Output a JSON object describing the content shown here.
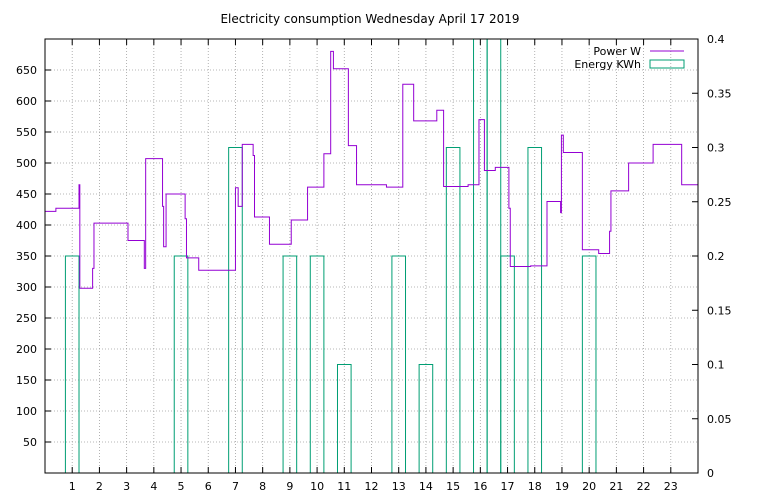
{
  "chart_data": {
    "type": "line",
    "title": "Electricity consumption Wednesday April 17 2019",
    "xlabel": "",
    "ylabel": "",
    "y2label": "",
    "xlim": [
      0,
      24
    ],
    "ylim": [
      0,
      700
    ],
    "y2lim": [
      0,
      0.4
    ],
    "grid": true,
    "legend_position": "top-right",
    "x_ticks": [
      1,
      2,
      3,
      4,
      5,
      6,
      7,
      8,
      9,
      10,
      11,
      12,
      13,
      14,
      15,
      16,
      17,
      18,
      19,
      20,
      21,
      22,
      23
    ],
    "x_tick_labels": [
      "1",
      "2",
      "3",
      "4",
      "5",
      "6",
      "7",
      "8",
      "9",
      "10",
      "11",
      "12",
      "13",
      "14",
      "15",
      "16",
      "17",
      "18",
      "19",
      "20",
      "21",
      "22",
      "23"
    ],
    "y_ticks": [
      50,
      100,
      150,
      200,
      250,
      300,
      350,
      400,
      450,
      500,
      550,
      600,
      650
    ],
    "y_tick_labels": [
      "50",
      "100",
      "150",
      "200",
      "250",
      "300",
      "350",
      "400",
      "450",
      "500",
      "550",
      "600",
      "650"
    ],
    "y2_ticks": [
      0,
      0.05,
      0.1,
      0.15,
      0.2,
      0.25,
      0.3,
      0.35,
      0.4
    ],
    "y2_tick_labels": [
      "0",
      "0.05",
      "0.1",
      "0.15",
      "0.2",
      "0.25",
      "0.3",
      "0.35",
      "0.4"
    ],
    "series": [
      {
        "name": "Power W",
        "color": "#9400d3",
        "style": "steps",
        "axis": "y1",
        "points": [
          [
            0.0,
            422
          ],
          [
            0.4,
            427
          ],
          [
            1.2,
            427
          ],
          [
            1.25,
            465
          ],
          [
            1.28,
            298
          ],
          [
            1.7,
            298
          ],
          [
            1.75,
            330
          ],
          [
            1.8,
            403
          ],
          [
            3.0,
            403
          ],
          [
            3.05,
            375
          ],
          [
            3.6,
            375
          ],
          [
            3.65,
            330
          ],
          [
            3.7,
            507
          ],
          [
            4.3,
            507
          ],
          [
            4.32,
            430
          ],
          [
            4.36,
            365
          ],
          [
            4.42,
            365
          ],
          [
            4.45,
            450
          ],
          [
            5.1,
            450
          ],
          [
            5.15,
            410
          ],
          [
            5.2,
            347
          ],
          [
            5.6,
            347
          ],
          [
            5.65,
            327
          ],
          [
            6.9,
            327
          ],
          [
            7.0,
            460
          ],
          [
            7.1,
            430
          ],
          [
            7.25,
            530
          ],
          [
            7.6,
            530
          ],
          [
            7.65,
            512
          ],
          [
            7.7,
            413
          ],
          [
            8.2,
            413
          ],
          [
            8.25,
            369
          ],
          [
            9.0,
            369
          ],
          [
            9.05,
            408
          ],
          [
            9.6,
            408
          ],
          [
            9.65,
            461
          ],
          [
            10.2,
            461
          ],
          [
            10.25,
            515
          ],
          [
            10.45,
            515
          ],
          [
            10.5,
            680
          ],
          [
            10.6,
            652
          ],
          [
            11.1,
            652
          ],
          [
            11.15,
            528
          ],
          [
            11.4,
            528
          ],
          [
            11.45,
            465
          ],
          [
            12.5,
            465
          ],
          [
            12.55,
            461
          ],
          [
            13.1,
            461
          ],
          [
            13.15,
            627
          ],
          [
            13.5,
            627
          ],
          [
            13.55,
            568
          ],
          [
            14.35,
            568
          ],
          [
            14.4,
            585
          ],
          [
            14.6,
            585
          ],
          [
            14.65,
            462
          ],
          [
            15.5,
            462
          ],
          [
            15.55,
            465
          ],
          [
            15.9,
            465
          ],
          [
            15.95,
            570
          ],
          [
            16.1,
            570
          ],
          [
            16.15,
            488
          ],
          [
            16.5,
            488
          ],
          [
            16.55,
            493
          ],
          [
            17.0,
            493
          ],
          [
            17.05,
            427
          ],
          [
            17.1,
            333
          ],
          [
            17.8,
            333
          ],
          [
            17.85,
            334
          ],
          [
            18.4,
            334
          ],
          [
            18.45,
            438
          ],
          [
            18.9,
            438
          ],
          [
            18.95,
            420
          ],
          [
            18.98,
            545
          ],
          [
            19.05,
            517
          ],
          [
            19.7,
            517
          ],
          [
            19.75,
            360
          ],
          [
            20.3,
            360
          ],
          [
            20.35,
            354
          ],
          [
            20.7,
            354
          ],
          [
            20.75,
            390
          ],
          [
            20.8,
            455
          ],
          [
            21.4,
            455
          ],
          [
            21.45,
            500
          ],
          [
            22.3,
            500
          ],
          [
            22.35,
            530
          ],
          [
            23.35,
            530
          ],
          [
            23.4,
            465
          ],
          [
            24.0,
            465
          ]
        ]
      },
      {
        "name": "Energy KWh",
        "color": "#009e73",
        "style": "boxes",
        "axis": "y2",
        "bars": [
          [
            1,
            0.2
          ],
          [
            5,
            0.2
          ],
          [
            7,
            0.3
          ],
          [
            9,
            0.2
          ],
          [
            10,
            0.2
          ],
          [
            11,
            0.1
          ],
          [
            13,
            0.2
          ],
          [
            14,
            0.1
          ],
          [
            15,
            0.3
          ],
          [
            16,
            0.4
          ],
          [
            16.5,
            0.4
          ],
          [
            17,
            0.2
          ],
          [
            18,
            0.3
          ],
          [
            20,
            0.2
          ]
        ],
        "bar_width": 0.5
      }
    ]
  }
}
